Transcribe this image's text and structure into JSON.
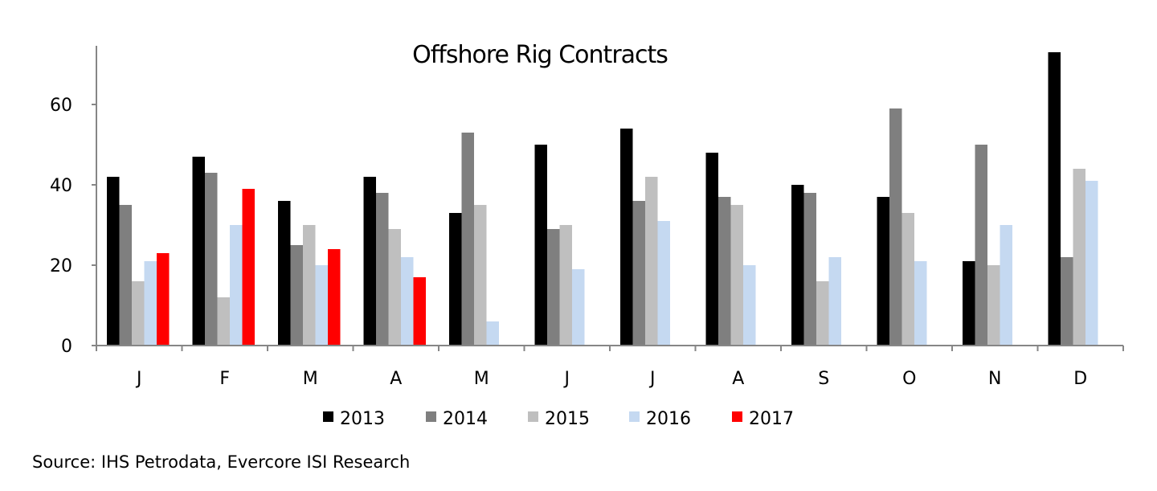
{
  "chart_data": {
    "type": "bar",
    "title": "Offshore Rig Contracts",
    "xlabel": "",
    "ylabel": "",
    "ylim": [
      0,
      75
    ],
    "yticks": [
      0,
      20,
      40,
      60
    ],
    "grid": false,
    "legend_position": "bottom",
    "categories": [
      "J",
      "F",
      "M",
      "A",
      "M",
      "J",
      "J",
      "A",
      "S",
      "O",
      "N",
      "D"
    ],
    "series": [
      {
        "name": "2013",
        "color": "#000000",
        "values": [
          42,
          47,
          36,
          42,
          33,
          50,
          54,
          48,
          40,
          37,
          21,
          73
        ]
      },
      {
        "name": "2014",
        "color": "#7f7f7f",
        "values": [
          35,
          43,
          25,
          38,
          53,
          29,
          36,
          37,
          38,
          59,
          50,
          22
        ]
      },
      {
        "name": "2015",
        "color": "#bfbfbf",
        "values": [
          16,
          12,
          30,
          29,
          35,
          30,
          42,
          35,
          16,
          33,
          20,
          44
        ]
      },
      {
        "name": "2016",
        "color": "#c5d9f1",
        "values": [
          21,
          30,
          20,
          22,
          6,
          19,
          31,
          20,
          22,
          21,
          30,
          41
        ]
      },
      {
        "name": "2017",
        "color": "#ff0000",
        "values": [
          23,
          39,
          24,
          17,
          null,
          null,
          null,
          null,
          null,
          null,
          null,
          null
        ]
      }
    ]
  },
  "source": "Source: IHS Petrodata, Evercore ISI Research"
}
